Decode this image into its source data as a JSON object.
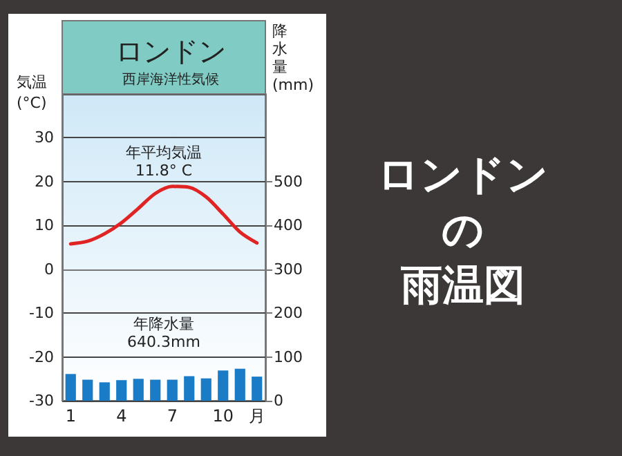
{
  "chart_data": {
    "type": "bar",
    "title": "ロンドン",
    "subtitle": "西岸海洋性気候",
    "ylabel": "気温\n(°C)",
    "y2label": "降水量\n(mm)",
    "categories": [
      "1",
      null,
      null,
      "4",
      null,
      null,
      "7",
      null,
      null,
      "10",
      null,
      "月"
    ],
    "series": [
      {
        "axis": "y2",
        "color": "#1a7bc6",
        "values": [
          61,
          48,
          42,
          47,
          50,
          48,
          48,
          56,
          51,
          69,
          73,
          55
        ]
      },
      {
        "type": "line",
        "axis": "y",
        "color": "#e02424",
        "values": [
          5.8,
          6.4,
          8.1,
          10.6,
          13.9,
          17.3,
          18.9,
          18.7,
          16.5,
          12.6,
          8.5,
          6.0
        ]
      }
    ],
    "ylim": [
      -30,
      40
    ],
    "yticks": [
      -30,
      -20,
      -10,
      0,
      10,
      20,
      30
    ],
    "y2lim": [
      0,
      700
    ],
    "y2ticks": [
      0,
      100,
      200,
      300,
      400,
      500
    ],
    "grid": "y",
    "annotations": [
      "年平均気温\n11.8° C",
      "年降水量\n640.3mm",
      "ロンドン",
      "の",
      "雨温図"
    ]
  }
}
